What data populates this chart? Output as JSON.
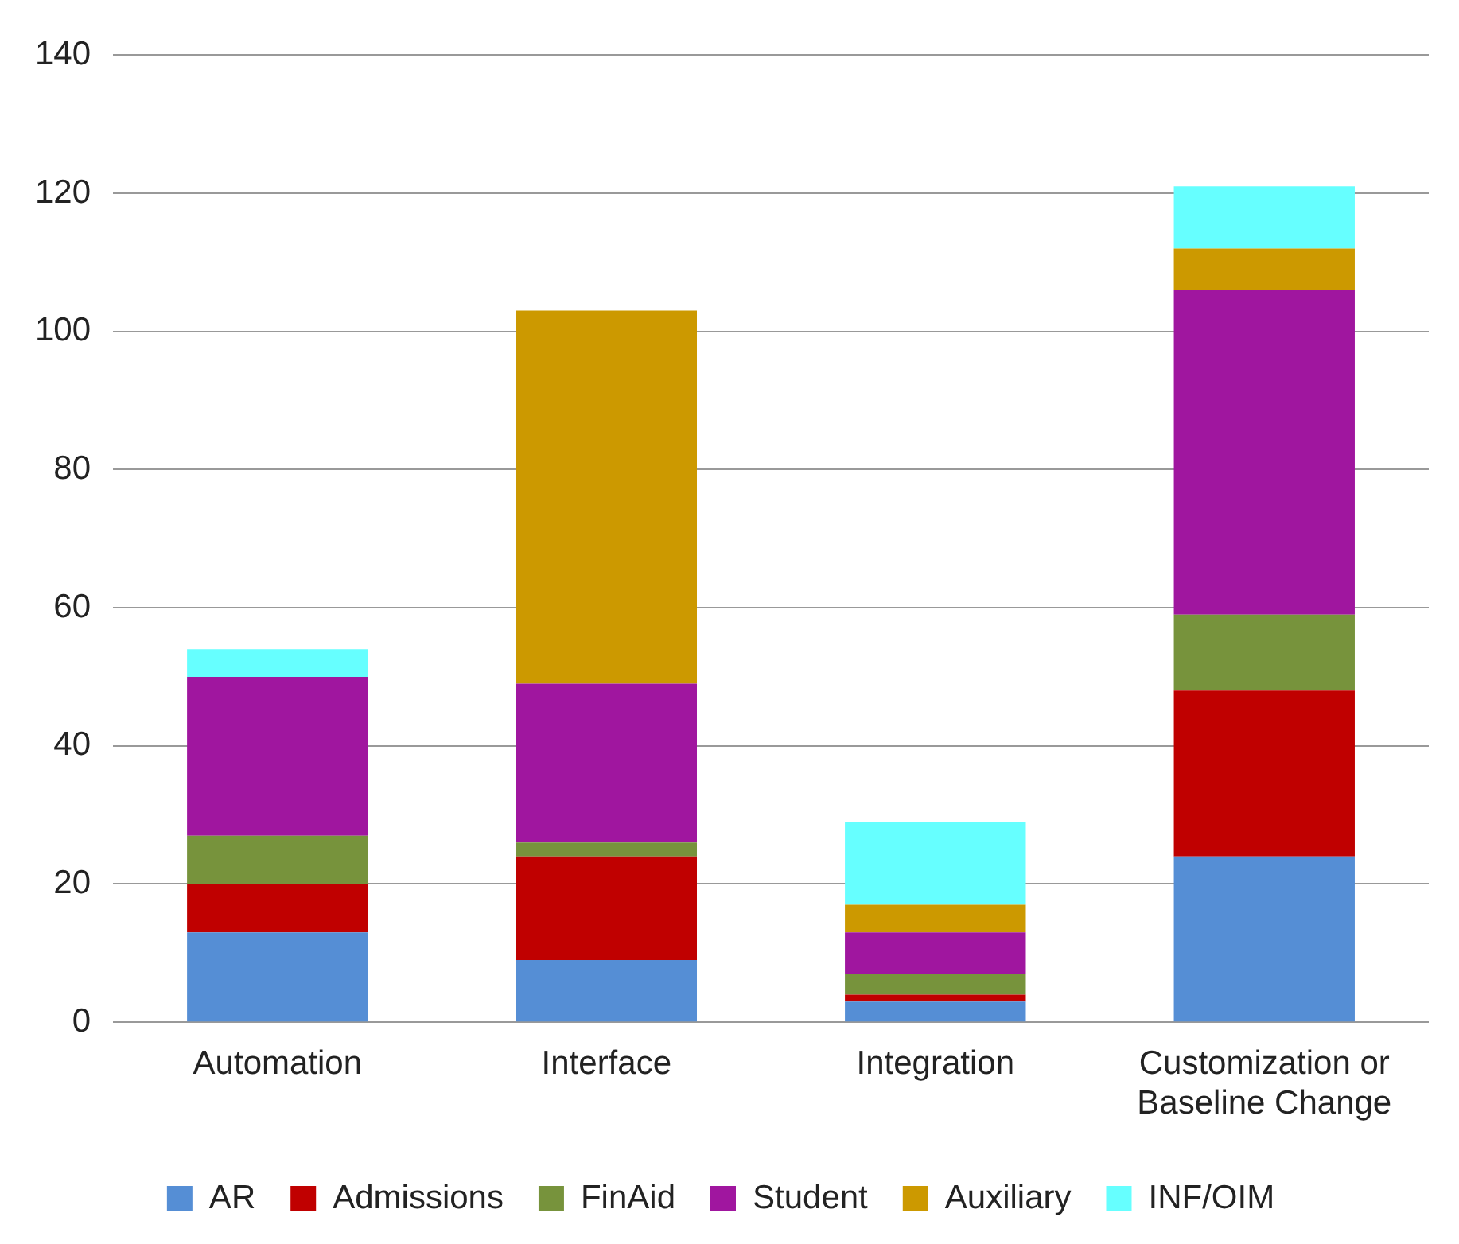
{
  "chart_data": {
    "type": "bar",
    "stacked": true,
    "categories": [
      "Automation",
      "Interface",
      "Integration",
      "Customization or Baseline Change"
    ],
    "series": [
      {
        "name": "AR",
        "color": "#558ed5",
        "values": [
          13,
          9,
          3,
          24
        ]
      },
      {
        "name": "Admissions",
        "color": "#c00000",
        "values": [
          7,
          15,
          1,
          24
        ]
      },
      {
        "name": "FinAid",
        "color": "#77933c",
        "values": [
          7,
          2,
          3,
          11
        ]
      },
      {
        "name": "Student",
        "color": "#a0169f",
        "values": [
          23,
          23,
          6,
          47
        ]
      },
      {
        "name": "Auxiliary",
        "color": "#cc9900",
        "values": [
          0,
          54,
          4,
          6
        ]
      },
      {
        "name": "INF/OIM",
        "color": "#66ffff",
        "values": [
          4,
          0,
          12,
          9
        ]
      }
    ],
    "ylim": [
      0,
      140
    ],
    "yticks": [
      0,
      20,
      40,
      60,
      80,
      100,
      120,
      140
    ],
    "grid": "y",
    "legend": "bottom"
  }
}
